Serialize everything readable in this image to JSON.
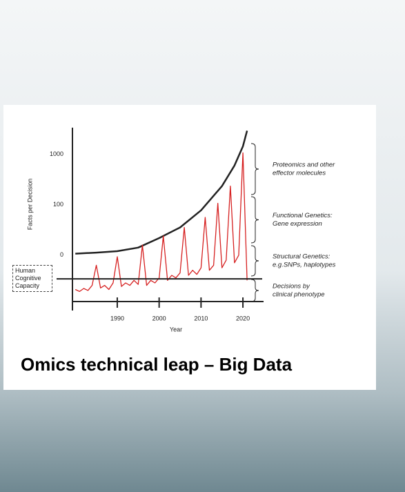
{
  "slide": {
    "title": "Omics technical leap – Big Data"
  },
  "chart_data": {
    "type": "line",
    "y_label": "Facts per Decision",
    "x_label": "Year",
    "y_categories": [
      "0",
      "100",
      "1000"
    ],
    "ylim": [
      -0.92,
      2.53
    ],
    "xlim": [
      1979.3,
      2024.6
    ],
    "xticks": [
      1990,
      2000,
      2010,
      2020
    ],
    "series": [
      {
        "color": "#222222",
        "x": [
          1980,
          1985,
          1990,
          1995,
          2000,
          2005,
          2010,
          2015,
          2018,
          2020,
          2021
        ],
        "values": [
          0.03,
          0.05,
          0.08,
          0.15,
          0.34,
          0.55,
          0.89,
          1.37,
          1.78,
          2.16,
          2.47
        ]
      },
      {
        "color": "#d62020",
        "x": [
          1980,
          1981,
          1982,
          1983,
          1984,
          1985,
          1986,
          1987,
          1988,
          1989,
          1990,
          1991,
          1992,
          1993,
          1994,
          1995,
          1996,
          1997,
          1998,
          1999,
          2000,
          2001,
          2002,
          2003,
          2004,
          2005,
          2006,
          2007,
          2008,
          2009,
          2010,
          2011,
          2012,
          2013,
          2014,
          2015,
          2016,
          2017,
          2018,
          2019,
          2020,
          2021
        ],
        "values": [
          -0.68,
          -0.72,
          -0.66,
          -0.7,
          -0.6,
          -0.2,
          -0.65,
          -0.6,
          -0.68,
          -0.55,
          -0.03,
          -0.62,
          -0.55,
          -0.6,
          -0.5,
          -0.58,
          0.2,
          -0.6,
          -0.5,
          -0.55,
          -0.45,
          0.38,
          -0.5,
          -0.4,
          -0.45,
          -0.35,
          0.55,
          -0.4,
          -0.3,
          -0.38,
          -0.25,
          0.75,
          -0.3,
          -0.2,
          1.03,
          -0.25,
          -0.1,
          1.37,
          -0.15,
          0.0,
          2.03,
          -0.5
        ]
      }
    ],
    "reference_line": {
      "value": -0.47,
      "label": "Human Cognitive Capacity"
    },
    "annotations": [
      [
        "Proteomics and other",
        "effector molecules"
      ],
      [
        "Functional Genetics:",
        "Gene expression"
      ],
      [
        "Structural Genetics:",
        "e.g.SNPs, haplotypes"
      ],
      [
        "Decisions by",
        "clinical phenotype"
      ]
    ]
  }
}
